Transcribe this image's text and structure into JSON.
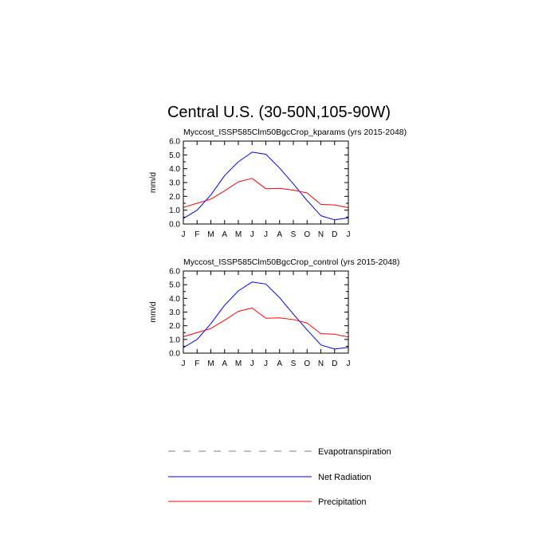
{
  "figure": {
    "title": "Central U.S. (30-50N,105-90W)"
  },
  "chart_data": [
    {
      "type": "line",
      "title": "Myccost_ISSP585Clm50BgcCrop_kparams (yrs 2015-2048)",
      "xlabel": "",
      "ylabel": "mm/d",
      "ylim": [
        0,
        6
      ],
      "yticks": [
        "0.0",
        "1.0",
        "2.0",
        "3.0",
        "4.0",
        "5.0",
        "6.0"
      ],
      "categories": [
        "J",
        "F",
        "M",
        "A",
        "M",
        "J",
        "J",
        "A",
        "S",
        "O",
        "N",
        "D",
        "J"
      ],
      "grid": false,
      "series": [
        {
          "name": "Net Radiation",
          "color": "#0000ff",
          "values": [
            0.4,
            1.0,
            2.1,
            3.5,
            4.5,
            5.2,
            5.05,
            4.05,
            2.9,
            1.7,
            0.6,
            0.3,
            0.45
          ]
        },
        {
          "name": "Precipitation",
          "color": "#ff0000",
          "values": [
            1.2,
            1.5,
            1.8,
            2.4,
            3.05,
            3.3,
            2.55,
            2.58,
            2.45,
            2.25,
            1.42,
            1.38,
            1.18
          ]
        }
      ]
    },
    {
      "type": "line",
      "title": "Myccost_ISSP585Clm50BgcCrop_control (yrs 2015-2048)",
      "xlabel": "",
      "ylabel": "mm/d",
      "ylim": [
        0,
        6
      ],
      "yticks": [
        "0.0",
        "1.0",
        "2.0",
        "3.0",
        "4.0",
        "5.0",
        "6.0"
      ],
      "categories": [
        "J",
        "F",
        "M",
        "A",
        "M",
        "J",
        "J",
        "A",
        "S",
        "O",
        "N",
        "D",
        "J"
      ],
      "grid": false,
      "series": [
        {
          "name": "Net Radiation",
          "color": "#0000ff",
          "values": [
            0.4,
            1.0,
            2.15,
            3.5,
            4.55,
            5.2,
            5.05,
            4.05,
            2.85,
            1.7,
            0.6,
            0.3,
            0.42
          ]
        },
        {
          "name": "Precipitation",
          "color": "#ff0000",
          "values": [
            1.2,
            1.5,
            1.8,
            2.4,
            3.05,
            3.3,
            2.55,
            2.58,
            2.45,
            2.2,
            1.42,
            1.38,
            1.18
          ]
        }
      ]
    }
  ],
  "legend": {
    "position": "bottom",
    "items": [
      {
        "label": "Evapotranspiration",
        "color": "#808080",
        "style": "dashed"
      },
      {
        "label": "Net Radiation",
        "color": "#0000ff",
        "style": "solid"
      },
      {
        "label": "Precipitation",
        "color": "#ff0000",
        "style": "solid"
      }
    ]
  }
}
